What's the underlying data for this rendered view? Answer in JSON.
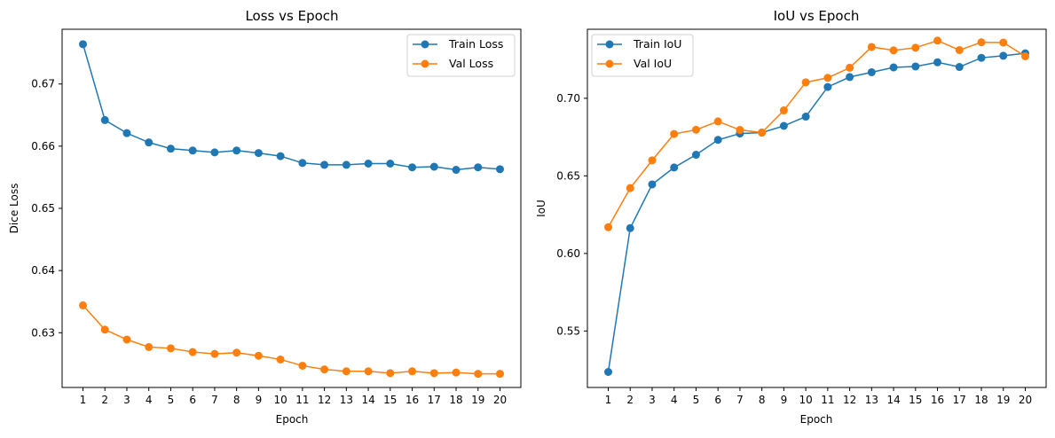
{
  "chart_data": [
    {
      "type": "line",
      "title": "Loss vs Epoch",
      "xlabel": "Epoch",
      "ylabel": "Dice Loss",
      "x": [
        1,
        2,
        3,
        4,
        5,
        6,
        7,
        8,
        9,
        10,
        11,
        12,
        13,
        14,
        15,
        16,
        17,
        18,
        19,
        20
      ],
      "xlim": [
        0.05,
        20.95
      ],
      "ylim": [
        0.6212,
        0.6788
      ],
      "yticks": [
        0.63,
        0.64,
        0.65,
        0.66,
        0.67
      ],
      "ytick_labels": [
        "0.63",
        "0.64",
        "0.65",
        "0.66",
        "0.67"
      ],
      "grid": false,
      "legend_position": "top-right",
      "series": [
        {
          "name": "Train Loss",
          "color": "#1f77b4",
          "values": [
            0.6764,
            0.6642,
            0.6621,
            0.6606,
            0.6596,
            0.6593,
            0.659,
            0.6593,
            0.6589,
            0.6584,
            0.6573,
            0.657,
            0.657,
            0.6572,
            0.6572,
            0.6566,
            0.6567,
            0.6562,
            0.6566,
            0.6563
          ]
        },
        {
          "name": "Val Loss",
          "color": "#ff7f0e",
          "values": [
            0.6344,
            0.6305,
            0.6289,
            0.6277,
            0.6275,
            0.6269,
            0.6266,
            0.6268,
            0.6263,
            0.6257,
            0.6247,
            0.6241,
            0.6238,
            0.6238,
            0.6235,
            0.6238,
            0.6235,
            0.6236,
            0.6234,
            0.6234
          ]
        }
      ]
    },
    {
      "type": "line",
      "title": "IoU vs Epoch",
      "xlabel": "Epoch",
      "ylabel": "IoU",
      "x": [
        1,
        2,
        3,
        4,
        5,
        6,
        7,
        8,
        9,
        10,
        11,
        12,
        13,
        14,
        15,
        16,
        17,
        18,
        19,
        20
      ],
      "xlim": [
        0.05,
        20.95
      ],
      "ylim": [
        0.5136,
        0.7445
      ],
      "yticks": [
        0.55,
        0.6,
        0.65,
        0.7
      ],
      "ytick_labels": [
        "0.55",
        "0.60",
        "0.65",
        "0.70"
      ],
      "grid": false,
      "legend_position": "top-left",
      "series": [
        {
          "name": "Train IoU",
          "color": "#1f77b4",
          "values": [
            0.5236,
            0.6163,
            0.6445,
            0.6554,
            0.6636,
            0.6732,
            0.6773,
            0.6779,
            0.6822,
            0.6882,
            0.7073,
            0.7137,
            0.7168,
            0.7199,
            0.7205,
            0.7232,
            0.7202,
            0.7261,
            0.7274,
            0.729
          ]
        },
        {
          "name": "Val IoU",
          "color": "#ff7f0e",
          "values": [
            0.6169,
            0.6421,
            0.66,
            0.677,
            0.6797,
            0.6851,
            0.6796,
            0.6779,
            0.6922,
            0.7103,
            0.7132,
            0.7197,
            0.7331,
            0.7309,
            0.7326,
            0.7372,
            0.7311,
            0.7361,
            0.7359,
            0.7271
          ]
        }
      ]
    }
  ]
}
